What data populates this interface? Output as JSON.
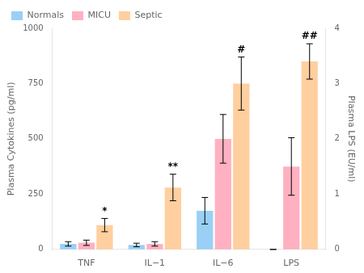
{
  "chart_data": {
    "type": "bar",
    "categories": [
      "TNF",
      "IL−1",
      "IL−6",
      "LPS"
    ],
    "series": [
      {
        "name": "Normals",
        "values": [
          25,
          20,
          175,
          0
        ],
        "errors": [
          10,
          8,
          60,
          0
        ]
      },
      {
        "name": "MICU",
        "values": [
          30,
          25,
          500,
          375
        ],
        "errors": [
          12,
          10,
          110,
          130
        ]
      },
      {
        "name": "Septic",
        "values": [
          110,
          280,
          750,
          850
        ],
        "errors": [
          30,
          60,
          120,
          80
        ]
      }
    ],
    "ylabel": "Plasma Cytokines (pg/ml)",
    "y2label": "Plasma LPS (EU/ml)",
    "ylim": [
      0,
      1000
    ],
    "yticks": [
      0,
      250,
      500,
      750,
      1000
    ],
    "y2lim": [
      0,
      4
    ],
    "y2ticks": [
      0,
      1,
      2,
      3,
      4
    ],
    "grid": false,
    "legend": "upper left",
    "annotations": [
      {
        "category": "TNF",
        "series": "Septic",
        "text": "*"
      },
      {
        "category": "IL−1",
        "series": "Septic",
        "text": "**"
      },
      {
        "category": "IL−6",
        "series": "Septic",
        "text": "#"
      },
      {
        "category": "LPS",
        "series": "Septic",
        "text": "##"
      }
    ]
  }
}
